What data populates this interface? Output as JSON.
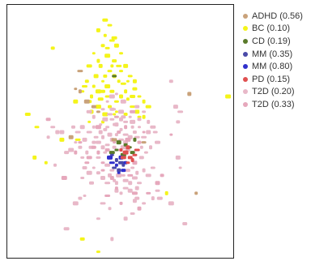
{
  "chart_data": {
    "type": "scatter",
    "title": "",
    "xlabel": "",
    "ylabel": "",
    "grid": false,
    "legend_position": "right",
    "xlim": [
      0,
      100
    ],
    "ylim": [
      0,
      100
    ],
    "series": [
      {
        "name": "ADHD (0.56)",
        "color": "#c9a27a",
        "points": [
          [
            30,
            67
          ],
          [
            35,
            62
          ],
          [
            38,
            60
          ],
          [
            40,
            58
          ],
          [
            32,
            66
          ],
          [
            47,
            47
          ],
          [
            60,
            46
          ],
          [
            80,
            65
          ],
          [
            83,
            26
          ],
          [
            32,
            74
          ],
          [
            28,
            48
          ]
        ]
      },
      {
        "name": "BC (0.10)",
        "color": "#f4f41a",
        "points": [
          [
            43,
            94
          ],
          [
            45,
            92
          ],
          [
            40,
            90
          ],
          [
            43,
            88
          ],
          [
            46,
            86
          ],
          [
            48,
            84
          ],
          [
            42,
            84
          ],
          [
            38,
            81
          ],
          [
            44,
            80
          ],
          [
            47,
            78
          ],
          [
            50,
            81
          ],
          [
            40,
            78
          ],
          [
            36,
            76
          ],
          [
            45,
            74
          ],
          [
            47,
            72
          ],
          [
            49,
            70
          ],
          [
            51,
            69
          ],
          [
            39,
            72
          ],
          [
            35,
            70
          ],
          [
            42,
            70
          ],
          [
            44,
            68
          ],
          [
            46,
            66
          ],
          [
            33,
            66
          ],
          [
            37,
            64
          ],
          [
            41,
            63
          ],
          [
            48,
            62
          ],
          [
            50,
            64
          ],
          [
            53,
            63
          ],
          [
            55,
            60
          ],
          [
            57,
            58
          ],
          [
            52,
            57
          ],
          [
            47,
            57
          ],
          [
            43,
            57
          ],
          [
            56,
            67
          ],
          [
            58,
            64
          ],
          [
            60,
            62
          ],
          [
            62,
            60
          ],
          [
            54,
            72
          ],
          [
            56,
            70
          ],
          [
            38,
            68
          ],
          [
            34,
            68
          ],
          [
            30,
            62
          ],
          [
            45,
            60
          ],
          [
            48,
            58
          ],
          [
            40,
            60
          ],
          [
            42,
            66
          ],
          [
            50,
            74
          ],
          [
            52,
            66
          ],
          [
            9,
            57
          ],
          [
            13,
            52
          ],
          [
            12,
            40
          ],
          [
            17,
            38
          ],
          [
            31,
            47
          ],
          [
            24,
            47
          ],
          [
            20,
            83
          ],
          [
            36,
            54
          ],
          [
            97,
            64
          ],
          [
            33,
            8
          ],
          [
            40,
            3
          ],
          [
            70,
            26
          ],
          [
            47,
            87
          ],
          [
            44,
            83
          ],
          [
            41,
            76
          ],
          [
            46,
            76
          ],
          [
            49,
            76
          ],
          [
            52,
            76
          ],
          [
            43,
            72
          ],
          [
            53,
            70
          ],
          [
            40,
            66
          ],
          [
            36,
            62
          ],
          [
            58,
            56
          ],
          [
            60,
            56
          ],
          [
            55,
            64
          ],
          [
            44,
            64
          ],
          [
            37,
            58
          ],
          [
            42,
            54
          ]
        ]
      },
      {
        "name": "CD (0.19)",
        "color": "#5a7a2a",
        "points": [
          [
            49,
            46
          ],
          [
            52,
            45
          ],
          [
            54,
            44
          ],
          [
            51,
            41
          ],
          [
            55,
            42
          ],
          [
            48,
            43
          ],
          [
            56,
            47
          ],
          [
            46,
            42
          ],
          [
            47,
            72
          ]
        ]
      },
      {
        "name": "MM (0.35)",
        "color": "#4a4aa8",
        "points": [
          [
            46,
            41
          ],
          [
            48,
            39
          ],
          [
            50,
            38
          ],
          [
            47,
            36
          ],
          [
            49,
            35
          ],
          [
            51,
            37
          ]
        ]
      },
      {
        "name": "MM (0.80)",
        "color": "#3030cc",
        "points": [
          [
            48,
            37
          ],
          [
            46,
            38
          ],
          [
            50,
            40
          ],
          [
            52,
            38
          ],
          [
            49,
            34
          ],
          [
            45,
            40
          ],
          [
            51,
            35
          ]
        ]
      },
      {
        "name": "PD (0.15)",
        "color": "#e05050",
        "points": [
          [
            52,
            42
          ],
          [
            54,
            40
          ],
          [
            53,
            38
          ],
          [
            55,
            39
          ],
          [
            51,
            40
          ],
          [
            56,
            41
          ],
          [
            53,
            44
          ],
          [
            50,
            43
          ],
          [
            57,
            43
          ]
        ]
      },
      {
        "name": "T2D (0.20)",
        "color": "#e8b8c8",
        "points": [
          [
            46,
            55
          ],
          [
            48,
            53
          ],
          [
            50,
            51
          ],
          [
            52,
            49
          ],
          [
            54,
            48
          ],
          [
            56,
            50
          ],
          [
            58,
            52
          ],
          [
            55,
            54
          ],
          [
            51,
            56
          ],
          [
            44,
            52
          ],
          [
            42,
            48
          ],
          [
            40,
            46
          ],
          [
            44,
            45
          ],
          [
            46,
            47
          ],
          [
            48,
            49
          ],
          [
            50,
            47
          ],
          [
            52,
            46
          ],
          [
            47,
            44
          ],
          [
            49,
            43
          ],
          [
            51,
            44
          ],
          [
            53,
            43
          ],
          [
            43,
            42
          ],
          [
            45,
            40
          ],
          [
            44,
            37
          ],
          [
            46,
            35
          ],
          [
            45,
            33
          ],
          [
            47,
            31
          ],
          [
            44,
            30
          ],
          [
            42,
            32
          ],
          [
            40,
            34
          ],
          [
            38,
            36
          ],
          [
            36,
            34
          ],
          [
            34,
            36
          ],
          [
            33,
            40
          ],
          [
            35,
            42
          ],
          [
            37,
            44
          ],
          [
            39,
            48
          ],
          [
            41,
            50
          ],
          [
            38,
            52
          ],
          [
            36,
            50
          ],
          [
            34,
            47
          ],
          [
            32,
            44
          ],
          [
            30,
            46
          ],
          [
            28,
            43
          ],
          [
            26,
            42
          ],
          [
            55,
            36
          ],
          [
            57,
            34
          ],
          [
            56,
            32
          ],
          [
            58,
            30
          ],
          [
            54,
            30
          ],
          [
            59,
            44
          ],
          [
            60,
            48
          ],
          [
            62,
            50
          ],
          [
            58,
            55
          ],
          [
            54,
            56
          ],
          [
            50,
            58
          ],
          [
            46,
            59
          ],
          [
            42,
            59
          ],
          [
            38,
            56
          ],
          [
            36,
            58
          ],
          [
            40,
            40
          ],
          [
            42,
            44
          ],
          [
            55,
            52
          ],
          [
            57,
            48
          ],
          [
            45,
            49
          ],
          [
            43,
            51
          ],
          [
            41,
            53
          ],
          [
            49,
            33
          ],
          [
            53,
            35
          ],
          [
            51,
            33
          ],
          [
            48,
            30
          ],
          [
            52,
            31
          ],
          [
            20,
            52
          ],
          [
            22,
            50
          ],
          [
            18,
            48
          ],
          [
            31,
            50
          ],
          [
            33,
            52
          ],
          [
            29,
            52
          ],
          [
            44,
            62
          ],
          [
            46,
            64
          ],
          [
            57,
            60
          ],
          [
            60,
            58
          ],
          [
            62,
            54
          ],
          [
            64,
            52
          ],
          [
            65,
            50
          ],
          [
            48,
            27
          ],
          [
            50,
            26
          ],
          [
            52,
            28
          ],
          [
            54,
            27
          ],
          [
            32,
            24
          ],
          [
            34,
            25
          ],
          [
            30,
            22
          ],
          [
            57,
            24
          ],
          [
            60,
            22
          ],
          [
            64,
            24
          ],
          [
            67,
            24
          ],
          [
            55,
            18
          ],
          [
            52,
            16
          ],
          [
            45,
            20
          ],
          [
            42,
            22
          ],
          [
            24,
            50
          ],
          [
            38,
            46
          ],
          [
            47,
            59
          ],
          [
            43,
            55
          ],
          [
            59,
            40
          ],
          [
            61,
            42
          ],
          [
            63,
            44
          ],
          [
            66,
            46
          ],
          [
            52,
            54
          ],
          [
            50,
            55
          ],
          [
            47,
            53
          ],
          [
            45,
            57
          ],
          [
            74,
            60
          ],
          [
            75,
            54
          ],
          [
            76,
            36
          ],
          [
            72,
            22
          ],
          [
            78,
            14
          ],
          [
            40,
            16
          ],
          [
            46,
            8
          ],
          [
            26,
            12
          ],
          [
            66,
            27
          ],
          [
            56,
            23
          ],
          [
            21,
            37
          ],
          [
            76,
            58
          ],
          [
            75,
            40
          ],
          [
            72,
            70
          ],
          [
            48,
            65
          ],
          [
            51,
            62
          ],
          [
            37,
            30
          ],
          [
            33,
            32
          ],
          [
            60,
            35
          ],
          [
            62,
            33
          ],
          [
            64,
            36
          ],
          [
            57,
            28
          ]
        ]
      },
      {
        "name": "T2D (0.33)",
        "color": "#e6a8bc",
        "points": [
          [
            49,
            50
          ],
          [
            47,
            46
          ],
          [
            53,
            47
          ],
          [
            44,
            43
          ],
          [
            42,
            38
          ],
          [
            40,
            42
          ],
          [
            36,
            40
          ],
          [
            35,
            38
          ],
          [
            46,
            32
          ],
          [
            48,
            28
          ],
          [
            54,
            33
          ],
          [
            56,
            38
          ],
          [
            58,
            46
          ],
          [
            60,
            50
          ],
          [
            40,
            52
          ],
          [
            38,
            44
          ],
          [
            32,
            46
          ],
          [
            30,
            42
          ],
          [
            56,
            26
          ],
          [
            62,
            26
          ],
          [
            58,
            20
          ],
          [
            50,
            22
          ],
          [
            44,
            25
          ],
          [
            66,
            30
          ],
          [
            68,
            33
          ],
          [
            72,
            49
          ],
          [
            25,
            32
          ],
          [
            18,
            55
          ],
          [
            42,
            35
          ],
          [
            52,
            52
          ],
          [
            55,
            58
          ],
          [
            48,
            56
          ]
        ]
      }
    ]
  }
}
